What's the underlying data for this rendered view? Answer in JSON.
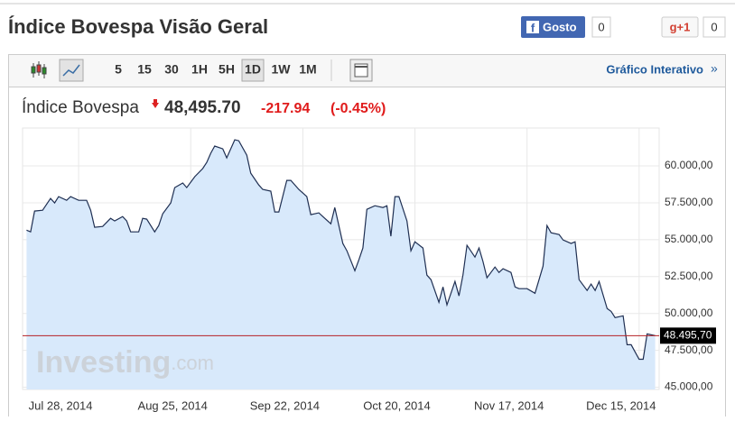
{
  "header": {
    "title": "Índice Bovespa Visão Geral",
    "like": "Gosto",
    "like_count": "0",
    "gplus": "g+1",
    "gplus_count": "0"
  },
  "toolbar": {
    "periods": [
      "5",
      "15",
      "30",
      "1H",
      "5H",
      "1D",
      "1W",
      "1M"
    ],
    "link": "Gráfico Interativo",
    "link_arrow": "»"
  },
  "quote": {
    "name": "Índice Bovespa",
    "price": "48,495.70",
    "change": "-217.94",
    "change_pct": "(-0.45%)"
  },
  "watermark": {
    "brand": "Investing",
    "suffix": ".com"
  },
  "chart_data": {
    "type": "area",
    "color": "#1f2f52",
    "fill": "#d8e9fb",
    "x": [
      "2014-07-15",
      "2014-07-16",
      "2014-07-17",
      "2014-07-19",
      "2014-07-21",
      "2014-07-22",
      "2014-07-23",
      "2014-07-25",
      "2014-07-26",
      "2014-07-28",
      "2014-07-30",
      "2014-07-31",
      "2014-08-01",
      "2014-08-03",
      "2014-08-05",
      "2014-08-06",
      "2014-08-08",
      "2014-08-09",
      "2014-08-10",
      "2014-08-12",
      "2014-08-13",
      "2014-08-14",
      "2014-08-16",
      "2014-08-17",
      "2014-08-18",
      "2014-08-20",
      "2014-08-21",
      "2014-08-23",
      "2014-08-24",
      "2014-08-26",
      "2014-08-28",
      "2014-08-29",
      "2014-08-30",
      "2014-08-31",
      "2014-09-02",
      "2014-09-03",
      "2014-09-05",
      "2014-09-06",
      "2014-09-08",
      "2014-09-09",
      "2014-09-11",
      "2014-09-12",
      "2014-09-14",
      "2014-09-15",
      "2014-09-16",
      "2014-09-18",
      "2014-09-19",
      "2014-09-21",
      "2014-09-23",
      "2014-09-24",
      "2014-09-26",
      "2014-09-27",
      "2014-09-29",
      "2014-09-30",
      "2014-10-02",
      "2014-10-03",
      "2014-10-05",
      "2014-10-06",
      "2014-10-07",
      "2014-10-08",
      "2014-10-10",
      "2014-10-12",
      "2014-10-13",
      "2014-10-14",
      "2014-10-15",
      "2014-10-16",
      "2014-10-18",
      "2014-10-19",
      "2014-10-20",
      "2014-10-22",
      "2014-10-23",
      "2014-10-24",
      "2014-10-26",
      "2014-10-27",
      "2014-10-28",
      "2014-10-30",
      "2014-10-31",
      "2014-11-01",
      "2014-11-02",
      "2014-11-04",
      "2014-11-05",
      "2014-11-06",
      "2014-11-07",
      "2014-11-09",
      "2014-11-10",
      "2014-11-11",
      "2014-11-13",
      "2014-11-14",
      "2014-11-15",
      "2014-11-17",
      "2014-11-19",
      "2014-11-20",
      "2014-11-21",
      "2014-11-22",
      "2014-11-23",
      "2014-11-25",
      "2014-11-26",
      "2014-11-28",
      "2014-11-29",
      "2014-11-30",
      "2014-12-02",
      "2014-12-03",
      "2014-12-04",
      "2014-12-05",
      "2014-12-07",
      "2014-12-08",
      "2014-12-09",
      "2014-12-11",
      "2014-12-12",
      "2014-12-13",
      "2014-12-15",
      "2014-12-16",
      "2014-12-17",
      "2014-12-19"
    ],
    "values": [
      55650,
      55530,
      56940,
      57000,
      57800,
      57490,
      57920,
      57670,
      57920,
      57670,
      57670,
      57000,
      55840,
      55900,
      56450,
      56270,
      56570,
      56270,
      55530,
      55530,
      56450,
      56390,
      55530,
      55960,
      56760,
      57490,
      58530,
      58840,
      58530,
      59270,
      59820,
      60240,
      60860,
      61350,
      61160,
      60550,
      61770,
      61710,
      60730,
      59510,
      58710,
      58410,
      58290,
      56880,
      56880,
      59020,
      59020,
      58410,
      57920,
      56700,
      56820,
      56570,
      56080,
      57180,
      54740,
      54250,
      52900,
      53640,
      54440,
      57060,
      57300,
      57180,
      57300,
      55230,
      57920,
      57920,
      56270,
      54250,
      54860,
      54440,
      52600,
      52290,
      50760,
      51800,
      50580,
      52170,
      51190,
      52600,
      54620,
      53820,
      54440,
      53520,
      52420,
      53150,
      52780,
      53030,
      52780,
      51800,
      51680,
      51680,
      51370,
      52290,
      53210,
      55960,
      55470,
      55350,
      54980,
      54740,
      54860,
      52290,
      51560,
      51990,
      51560,
      52170,
      50330,
      50140,
      49720,
      49840,
      47880,
      47880,
      46900,
      46900,
      48620,
      48495.7
    ],
    "xlim": [
      "2014-07-14",
      "2014-12-20"
    ],
    "xticks": [
      {
        "value": "2014-07-28",
        "label": "Jul 28, 2014"
      },
      {
        "value": "2014-08-25",
        "label": "Aug 25, 2014"
      },
      {
        "value": "2014-09-22",
        "label": "Sep 22, 2014"
      },
      {
        "value": "2014-10-20",
        "label": "Oct 20, 2014"
      },
      {
        "value": "2014-11-17",
        "label": "Nov 17, 2014"
      },
      {
        "value": "2014-12-15",
        "label": "Dec 15, 2014"
      }
    ],
    "ylim": [
      44850,
      62570
    ],
    "yticks": [
      {
        "value": 45000,
        "label": "45.000,00"
      },
      {
        "value": 47500,
        "label": "47.500,00"
      },
      {
        "value": 50000,
        "label": "50.000,00"
      },
      {
        "value": 52500,
        "label": "52.500,00"
      },
      {
        "value": 55000,
        "label": "55.000,00"
      },
      {
        "value": 57500,
        "label": "57.500,00"
      },
      {
        "value": 60000,
        "label": "60.000,00"
      }
    ],
    "last_price": {
      "value": 48495.7,
      "label": "48.495,70"
    },
    "last_color": "#b52025",
    "grid": true
  }
}
